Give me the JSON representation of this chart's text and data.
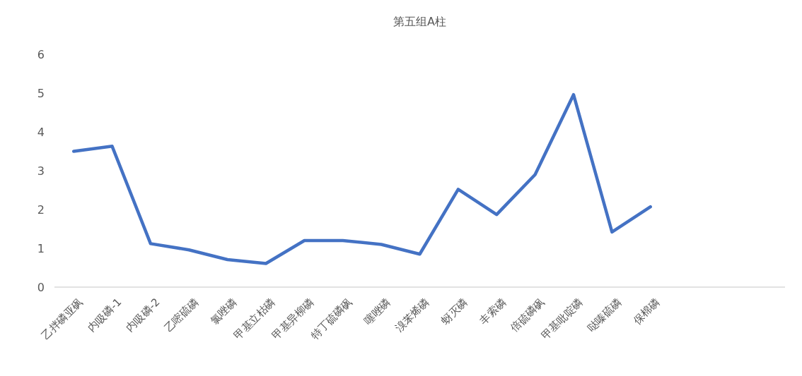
{
  "chart_data": {
    "type": "line",
    "title": "第五组A柱",
    "categories": [
      "乙拌磷亚砜",
      "内吸磷-1",
      "内吸磷-2",
      "乙嘧硫磷",
      "氯唑磷",
      "甲基立枯磷",
      "甲基异柳磷",
      "特丁硫磷砜",
      "噻唑磷",
      "溴苯烯磷",
      "蚜灭磷",
      "丰索磷",
      "倍硫磷砜",
      "甲基吡啶磷",
      "哒嗪硫磷",
      "保棉磷",
      null,
      null,
      null
    ],
    "series": [
      {
        "color": "#4472c4",
        "values": [
          3.5,
          3.63,
          1.12,
          0.96,
          0.71,
          0.61,
          1.2,
          1.2,
          1.1,
          0.85,
          2.52,
          1.87,
          2.9,
          4.96,
          1.42,
          2.07,
          null,
          null,
          null
        ]
      }
    ],
    "ylim": [
      0,
      6
    ],
    "yticks": [
      0,
      1,
      2,
      3,
      4,
      5,
      6
    ],
    "grid": false,
    "marker": "none",
    "line_style": "solid"
  }
}
